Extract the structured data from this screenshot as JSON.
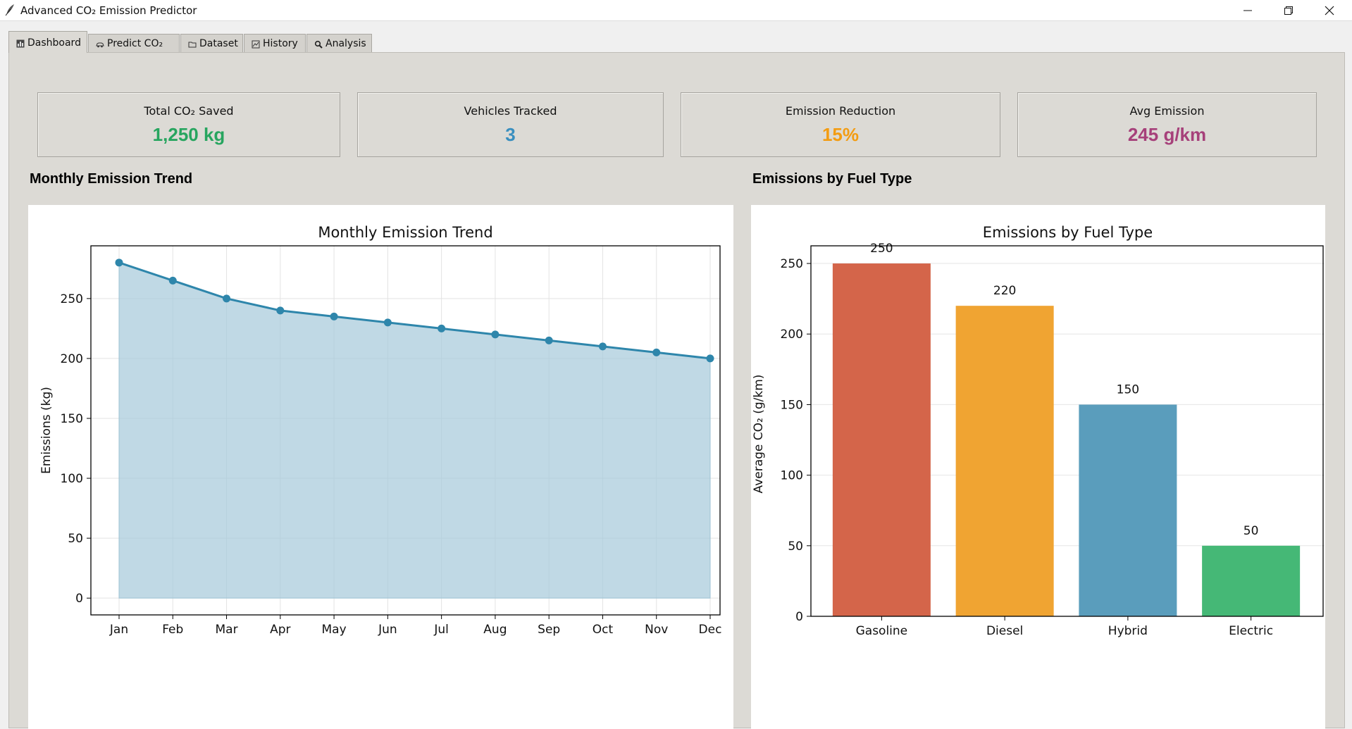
{
  "window": {
    "title": "Advanced CO₂ Emission Predictor",
    "app_icon": "feather-icon",
    "controls": [
      "minimize-icon",
      "restore-icon",
      "close-icon"
    ]
  },
  "tabs": [
    {
      "label": "Dashboard",
      "icon": "dashboard-icon",
      "active": true
    },
    {
      "label": "Predict CO₂",
      "icon": "car-icon",
      "active": false
    },
    {
      "label": "Dataset",
      "icon": "folder-icon",
      "active": false
    },
    {
      "label": "History",
      "icon": "history-chart-icon",
      "active": false
    },
    {
      "label": "Analysis",
      "icon": "magnifier-icon",
      "active": false
    }
  ],
  "kpis": [
    {
      "label": "Total CO₂ Saved",
      "value": "1,250 kg",
      "color": "#27a55f"
    },
    {
      "label": "Vehicles Tracked",
      "value": "3",
      "color": "#3a8fbf"
    },
    {
      "label": "Emission Reduction",
      "value": "15%",
      "color": "#f39c12"
    },
    {
      "label": "Avg Emission",
      "value": "245 g/km",
      "color": "#a6407a"
    }
  ],
  "sections": {
    "trend_title": "Monthly Emission Trend",
    "fuel_title": "Emissions by Fuel Type"
  },
  "chart_data": [
    {
      "type": "area",
      "title": "Monthly Emission Trend",
      "xlabel": "",
      "ylabel": "Emissions (kg)",
      "x": [
        "Jan",
        "Feb",
        "Mar",
        "Apr",
        "May",
        "Jun",
        "Jul",
        "Aug",
        "Sep",
        "Oct",
        "Nov",
        "Dec"
      ],
      "values": [
        280,
        265,
        250,
        240,
        235,
        230,
        225,
        220,
        215,
        210,
        205,
        200
      ],
      "ylim": [
        -14,
        294
      ],
      "yticks": [
        0,
        50,
        100,
        150,
        200,
        250
      ],
      "grid": true,
      "line_color": "#2e86ab",
      "fill_color": "#a8cadb"
    },
    {
      "type": "bar",
      "title": "Emissions by Fuel Type",
      "xlabel": "",
      "ylabel": "Average CO₂ (g/km)",
      "categories": [
        "Gasoline",
        "Diesel",
        "Hybrid",
        "Electric"
      ],
      "values": [
        250,
        220,
        150,
        50
      ],
      "data_labels": [
        "250",
        "220",
        "150",
        "50"
      ],
      "colors": [
        "#d4654a",
        "#f0a432",
        "#5a9dbc",
        "#45b876"
      ],
      "ylim": [
        0,
        262.5
      ],
      "yticks": [
        0,
        50,
        100,
        150,
        200,
        250
      ],
      "grid": true
    }
  ]
}
